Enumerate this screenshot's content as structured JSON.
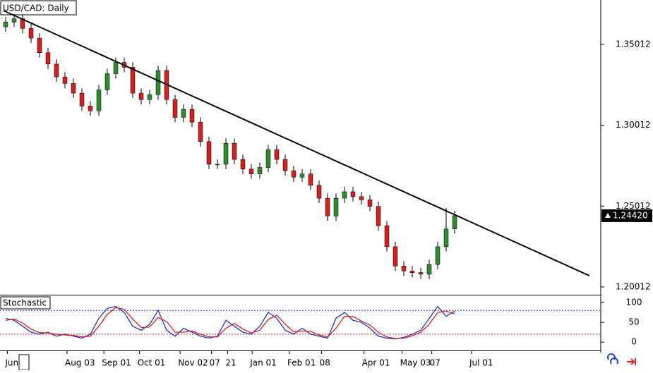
{
  "chart_data": [
    {
      "type": "candlestick",
      "title": "USD/CAD: Daily",
      "open": [
        1.361,
        1.364,
        1.366,
        1.36,
        1.354,
        1.345,
        1.338,
        1.33,
        1.326,
        1.32,
        1.312,
        1.309,
        1.322,
        1.332,
        1.339,
        1.336,
        1.32,
        1.316,
        1.319,
        1.334,
        1.316,
        1.305,
        1.31,
        1.302,
        1.29,
        1.276,
        1.276,
        1.289,
        1.279,
        1.273,
        1.27,
        1.274,
        1.285,
        1.279,
        1.272,
        1.268,
        1.27,
        1.263,
        1.255,
        1.244,
        1.255,
        1.259,
        1.256,
        1.254,
        1.25,
        1.238,
        1.225,
        1.213,
        1.21,
        1.209,
        1.208,
        1.214,
        1.225,
        1.236
      ],
      "close": [
        1.364,
        1.366,
        1.36,
        1.354,
        1.345,
        1.338,
        1.33,
        1.326,
        1.32,
        1.312,
        1.309,
        1.322,
        1.332,
        1.339,
        1.336,
        1.32,
        1.316,
        1.319,
        1.334,
        1.316,
        1.305,
        1.31,
        1.302,
        1.29,
        1.276,
        1.276,
        1.289,
        1.279,
        1.273,
        1.27,
        1.274,
        1.285,
        1.279,
        1.272,
        1.268,
        1.27,
        1.263,
        1.255,
        1.244,
        1.255,
        1.259,
        1.256,
        1.254,
        1.25,
        1.238,
        1.225,
        1.213,
        1.21,
        1.209,
        1.208,
        1.214,
        1.225,
        1.236,
        1.2442
      ],
      "high": [
        1.367,
        1.369,
        1.369,
        1.363,
        1.357,
        1.348,
        1.341,
        1.333,
        1.329,
        1.323,
        1.315,
        1.325,
        1.335,
        1.342,
        1.342,
        1.339,
        1.323,
        1.322,
        1.337,
        1.337,
        1.319,
        1.313,
        1.313,
        1.305,
        1.293,
        1.279,
        1.292,
        1.292,
        1.282,
        1.276,
        1.277,
        1.288,
        1.288,
        1.282,
        1.275,
        1.273,
        1.273,
        1.266,
        1.258,
        1.258,
        1.262,
        1.262,
        1.259,
        1.257,
        1.253,
        1.241,
        1.228,
        1.216,
        1.213,
        1.212,
        1.217,
        1.228,
        1.249,
        1.2472
      ],
      "low": [
        1.358,
        1.361,
        1.357,
        1.351,
        1.342,
        1.335,
        1.327,
        1.323,
        1.317,
        1.309,
        1.306,
        1.306,
        1.319,
        1.329,
        1.333,
        1.317,
        1.313,
        1.313,
        1.316,
        1.313,
        1.302,
        1.302,
        1.299,
        1.287,
        1.273,
        1.273,
        1.273,
        1.276,
        1.27,
        1.267,
        1.267,
        1.271,
        1.276,
        1.269,
        1.265,
        1.265,
        1.26,
        1.252,
        1.241,
        1.241,
        1.252,
        1.253,
        1.251,
        1.247,
        1.235,
        1.222,
        1.21,
        1.207,
        1.206,
        1.205,
        1.205,
        1.211,
        1.222,
        1.233
      ],
      "up_color": "#2e8b2e",
      "down_color": "#d42020",
      "ylim": [
        1.1953,
        1.3776
      ],
      "yticks": [
        1.35012,
        1.30012,
        1.25012,
        1.20012
      ],
      "trendline": {
        "x": [
          -0.25,
          68.9
        ],
        "y": [
          1.371,
          1.2071
        ]
      },
      "current_price": {
        "value": 1.2442,
        "label": "1.24420"
      }
    },
    {
      "type": "line",
      "title": "Stochastic",
      "series": [
        {
          "color": "#2233cc",
          "values": [
            60,
            55,
            40,
            25,
            20,
            25,
            15,
            20,
            15,
            10,
            20,
            60,
            85,
            90,
            75,
            40,
            30,
            45,
            80,
            30,
            15,
            35,
            25,
            15,
            10,
            15,
            55,
            40,
            25,
            20,
            40,
            75,
            60,
            30,
            20,
            35,
            20,
            15,
            10,
            60,
            75,
            55,
            50,
            35,
            15,
            10,
            8,
            12,
            20,
            30,
            60,
            90,
            65,
            78
          ]
        },
        {
          "color": "#dd2222",
          "values": [
            55,
            58,
            48,
            33,
            24,
            23,
            20,
            18,
            17,
            13,
            15,
            40,
            70,
            87,
            83,
            58,
            37,
            38,
            62,
            52,
            25,
            25,
            28,
            20,
            13,
            13,
            35,
            47,
            33,
            23,
            30,
            57,
            68,
            45,
            26,
            28,
            27,
            18,
            13,
            35,
            65,
            65,
            53,
            43,
            25,
            13,
            9,
            10,
            16,
            25,
            45,
            75,
            78,
            72
          ]
        }
      ],
      "ylim": [
        -21,
        116
      ],
      "yticks": [
        0,
        50,
        100
      ],
      "levels": [
        {
          "value": 80,
          "color": "#2233cc"
        },
        {
          "value": 20,
          "color": "#dd2222"
        }
      ],
      "xticks": [
        {
          "value": 0.2,
          "label": "Jun"
        },
        {
          "value": 7.25,
          "label": "Aug 03"
        },
        {
          "value": 11.6,
          "label": "Sep 01"
        },
        {
          "value": 15.8,
          "label": "Oct 01"
        },
        {
          "value": 20.6,
          "label": "Nov 02"
        },
        {
          "value": 24.3,
          "label": "07"
        },
        {
          "value": 26.2,
          "label": "21"
        },
        {
          "value": 29.1,
          "label": "Jan 01"
        },
        {
          "value": 33.5,
          "label": "Feb 01"
        },
        {
          "value": 37.3,
          "label": "08"
        },
        {
          "value": 42.3,
          "label": "Apr 01"
        },
        {
          "value": 46.8,
          "label": "May 03"
        },
        {
          "value": 50.3,
          "label": "07"
        },
        {
          "value": 55,
          "label": "Jul 01"
        }
      ]
    }
  ]
}
